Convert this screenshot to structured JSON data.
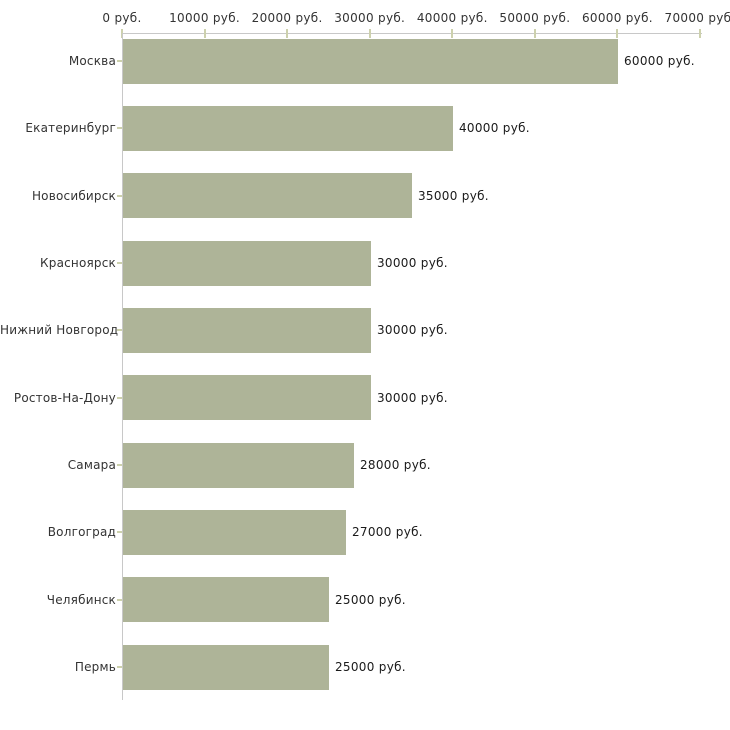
{
  "chart_data": {
    "type": "bar",
    "orientation": "horizontal",
    "title": "",
    "xlabel": "",
    "ylabel": "",
    "unit": "руб.",
    "grid": false,
    "legend": false,
    "xlim": [
      0,
      70000
    ],
    "x_tick_values": [
      0,
      10000,
      20000,
      30000,
      40000,
      50000,
      60000,
      70000
    ],
    "x_tick_labels": [
      "0 руб.",
      "10000 руб.",
      "20000 руб.",
      "30000 руб.",
      "40000 руб.",
      "50000 руб.",
      "60000 руб.",
      "70000 руб."
    ],
    "categories": [
      "Москва",
      "Екатеринбург",
      "Новосибирск",
      "Красноярск",
      "Нижний Новгород",
      "Ростов-На-Дону",
      "Самара",
      "Волгоград",
      "Челябинск",
      "Пермь"
    ],
    "values": [
      60000,
      40000,
      35000,
      30000,
      30000,
      30000,
      28000,
      27000,
      25000,
      25000
    ],
    "value_labels": [
      "60000 руб.",
      "40000 руб.",
      "35000 руб.",
      "30000 руб.",
      "30000 руб.",
      "30000 руб.",
      "28000 руб.",
      "27000 руб.",
      "25000 руб.",
      "25000 руб."
    ],
    "colors": {
      "bar_fill": "#aeb498",
      "axis_line": "#c8c8c8",
      "tick_mark": "#cdd1ad",
      "label_text": "#333333",
      "background": "#ffffff"
    }
  }
}
